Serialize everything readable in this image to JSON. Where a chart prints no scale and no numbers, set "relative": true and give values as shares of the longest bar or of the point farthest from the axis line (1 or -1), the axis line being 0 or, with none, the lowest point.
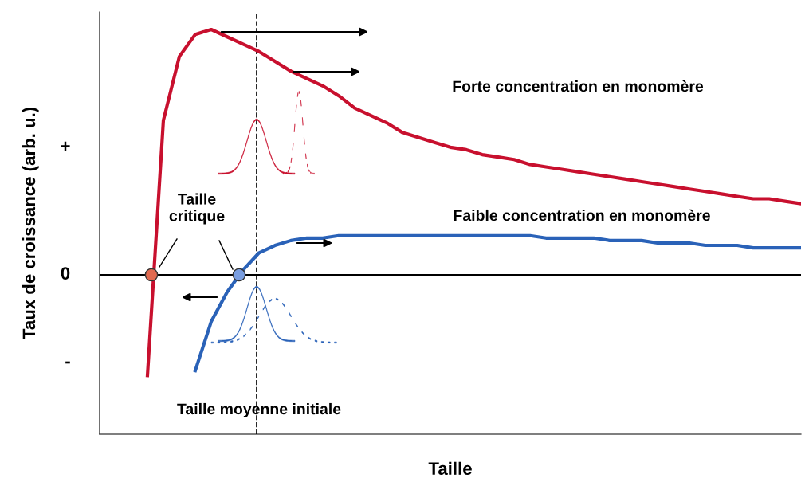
{
  "chart_data": {
    "type": "line",
    "relative": true,
    "xlabel": "Taille",
    "ylabel": "Taux de croissance (arb. u.)",
    "categories": [
      null,
      null,
      null,
      null,
      null,
      null,
      null,
      null,
      null,
      null,
      null,
      null,
      null,
      null,
      null,
      null,
      null,
      null,
      null,
      null,
      null,
      null,
      null,
      null,
      null,
      null,
      null,
      null,
      null,
      null,
      null,
      null,
      null,
      null,
      null,
      null,
      null,
      null,
      null,
      null,
      null,
      null,
      null,
      null,
      null
    ],
    "series": [
      {
        "color": "#c8102e",
        "values": [
          null,
          null,
          null,
          -0.41,
          0.63,
          0.89,
          0.98,
          1.0,
          0.97,
          0.94,
          0.91,
          0.87,
          0.83,
          0.8,
          0.77,
          0.73,
          0.68,
          0.65,
          0.62,
          0.58,
          0.56,
          0.54,
          0.52,
          0.51,
          0.49,
          0.48,
          0.47,
          0.45,
          0.44,
          0.43,
          0.42,
          0.41,
          0.4,
          0.39,
          0.38,
          0.37,
          0.36,
          0.35,
          0.34,
          0.33,
          0.32,
          0.31,
          0.31,
          0.3,
          0.29
        ]
      },
      {
        "color": "#2a62b8",
        "values": [
          null,
          null,
          null,
          null,
          null,
          null,
          -0.39,
          -0.19,
          -0.07,
          0.02,
          0.09,
          0.12,
          0.14,
          0.15,
          0.15,
          0.16,
          0.16,
          0.16,
          0.16,
          0.16,
          0.16,
          0.16,
          0.16,
          0.16,
          0.16,
          0.16,
          0.16,
          0.16,
          0.15,
          0.15,
          0.15,
          0.15,
          0.14,
          0.14,
          0.14,
          0.13,
          0.13,
          0.13,
          0.12,
          0.12,
          0.12,
          0.11,
          0.11,
          0.11,
          0.11
        ]
      }
    ],
    "annotations": [
      "Forte concentration en monomère",
      "Faible concentration en monomère",
      "Taille\ncritique",
      "Taille moyenne initiale",
      "+",
      "0",
      "-"
    ]
  }
}
